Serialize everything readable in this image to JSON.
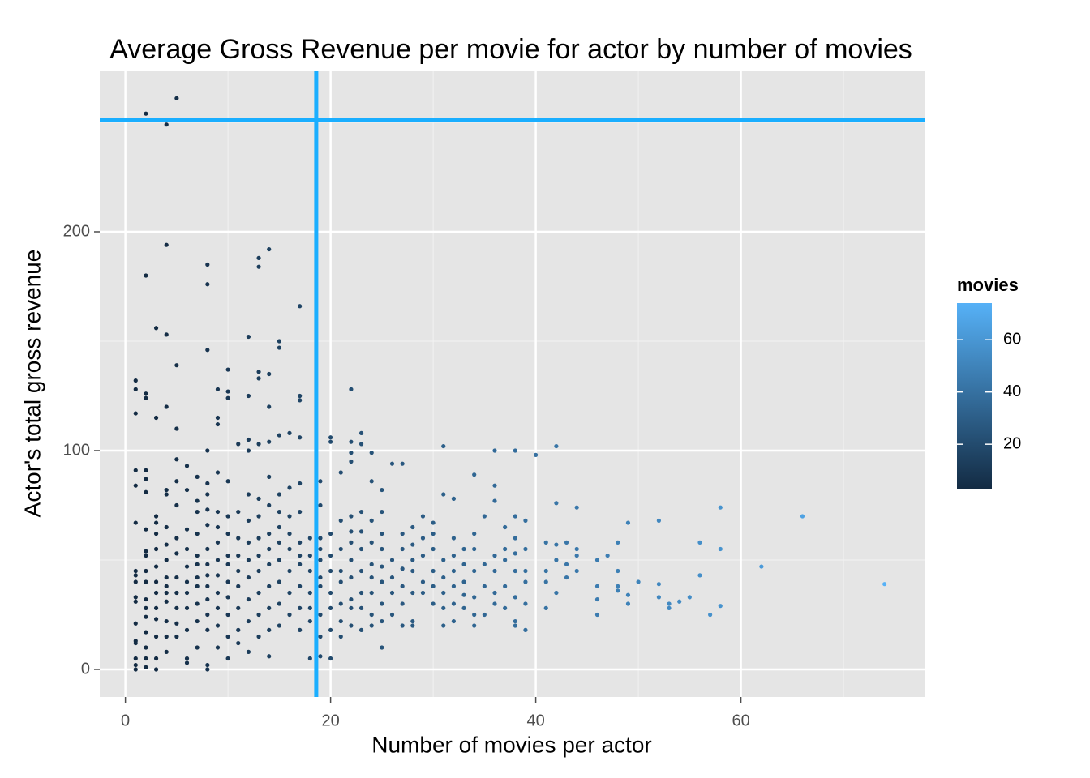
{
  "chart_data": {
    "type": "scatter",
    "title": "Average Gross Revenue per movie for actor by number of movies",
    "x_label": "Number of movies per actor",
    "y_label": "Actor's total gross revenue",
    "xlim": [
      -2.5,
      77.9
    ],
    "ylim": [
      -12.6,
      273.7
    ],
    "xticks": [
      0,
      20,
      40,
      60
    ],
    "yticks": [
      0,
      100,
      200
    ],
    "x_minor_grid": [
      10,
      30,
      50,
      70
    ],
    "y_minor_grid": [
      50,
      150,
      250
    ],
    "grid": true,
    "legend_title": "movies",
    "legend_position": "right",
    "color_scale": {
      "low": "#132B43",
      "high": "#56B1F7",
      "lim": [
        3,
        74
      ],
      "ticks": [
        20,
        40,
        60
      ]
    },
    "reference_lines": {
      "color": "#1aaeff",
      "x": 18.6,
      "y": 251
    },
    "x": [
      1,
      1,
      1,
      1,
      1,
      1,
      1,
      1,
      1,
      1,
      1,
      1,
      1,
      1,
      1,
      1,
      1,
      2,
      2,
      2,
      2,
      2,
      2,
      2,
      2,
      2,
      2,
      2,
      2,
      2,
      2,
      2,
      2,
      2,
      2,
      2,
      3,
      3,
      3,
      3,
      3,
      3,
      3,
      3,
      3,
      3,
      3,
      3,
      3,
      3,
      4,
      4,
      4,
      4,
      4,
      4,
      4,
      4,
      4,
      4,
      4,
      4,
      4,
      4,
      4,
      4,
      5,
      5,
      5,
      5,
      5,
      5,
      5,
      5,
      5,
      5,
      5,
      5,
      5,
      6,
      6,
      6,
      6,
      6,
      6,
      6,
      6,
      6,
      6,
      6,
      7,
      7,
      7,
      7,
      7,
      7,
      7,
      7,
      7,
      7,
      7,
      8,
      8,
      8,
      8,
      8,
      8,
      8,
      8,
      8,
      8,
      8,
      8,
      8,
      8,
      8,
      8,
      8,
      9,
      9,
      9,
      9,
      9,
      9,
      9,
      9,
      9,
      9,
      9,
      9,
      9,
      10,
      10,
      10,
      10,
      10,
      10,
      10,
      10,
      10,
      10,
      10,
      10,
      10,
      11,
      11,
      11,
      11,
      11,
      11,
      11,
      11,
      11,
      12,
      12,
      12,
      12,
      12,
      12,
      12,
      12,
      12,
      12,
      12,
      12,
      13,
      13,
      13,
      13,
      13,
      13,
      13,
      13,
      13,
      13,
      13,
      13,
      13,
      14,
      14,
      14,
      14,
      14,
      14,
      14,
      14,
      14,
      14,
      14,
      14,
      14,
      15,
      15,
      15,
      15,
      15,
      15,
      15,
      15,
      15,
      15,
      15,
      16,
      16,
      16,
      16,
      16,
      16,
      16,
      16,
      17,
      17,
      17,
      17,
      17,
      17,
      17,
      17,
      17,
      17,
      17,
      17,
      18,
      18,
      18,
      18,
      18,
      18,
      18,
      19,
      19,
      19,
      19,
      19,
      19,
      19,
      19,
      19,
      19,
      20,
      20,
      20,
      20,
      20,
      20,
      20,
      20,
      20,
      21,
      21,
      21,
      21,
      21,
      21,
      21,
      21,
      22,
      22,
      22,
      22,
      22,
      22,
      22,
      22,
      22,
      22,
      22,
      22,
      23,
      23,
      23,
      23,
      23,
      23,
      23,
      23,
      23,
      24,
      24,
      24,
      24,
      24,
      24,
      24,
      24,
      24,
      25,
      25,
      25,
      25,
      25,
      25,
      25,
      25,
      25,
      26,
      26,
      26,
      26,
      26,
      27,
      27,
      27,
      27,
      27,
      27,
      27,
      28,
      28,
      28,
      28,
      28,
      28,
      28,
      29,
      29,
      29,
      29,
      29,
      30,
      30,
      30,
      30,
      30,
      30,
      31,
      31,
      31,
      31,
      31,
      31,
      31,
      32,
      32,
      32,
      32,
      32,
      32,
      32,
      33,
      33,
      33,
      33,
      33,
      34,
      34,
      34,
      34,
      34,
      34,
      34,
      35,
      35,
      35,
      35,
      36,
      36,
      36,
      36,
      36,
      36,
      36,
      37,
      37,
      37,
      37,
      37,
      38,
      38,
      38,
      38,
      38,
      38,
      38,
      38,
      39,
      39,
      39,
      39,
      39,
      39,
      40,
      41,
      41,
      41,
      41,
      42,
      42,
      42,
      42,
      42,
      43,
      43,
      43,
      44,
      44,
      44,
      44,
      46,
      46,
      46,
      46,
      47,
      48,
      48,
      48,
      48,
      49,
      49,
      49,
      50,
      52,
      52,
      52,
      53,
      53,
      54,
      55,
      56,
      56,
      57,
      58,
      58,
      58,
      62,
      66,
      74
    ],
    "y": [
      0,
      2,
      5,
      12,
      13,
      21,
      31,
      33,
      40,
      43,
      45,
      67,
      84,
      91,
      117,
      128,
      132,
      1,
      5,
      10,
      17,
      24,
      28,
      32,
      40,
      45,
      52,
      54,
      64,
      81,
      87,
      91,
      124,
      126,
      180,
      254,
      0,
      5,
      15,
      23,
      28,
      35,
      40,
      47,
      55,
      62,
      67,
      70,
      115,
      156,
      8,
      15,
      22,
      31,
      35,
      38,
      42,
      50,
      57,
      65,
      80,
      82,
      120,
      153,
      194,
      249,
      15,
      21,
      28,
      35,
      42,
      53,
      60,
      75,
      86,
      96,
      110,
      139,
      261,
      3,
      5,
      18,
      28,
      35,
      40,
      47,
      55,
      64,
      82,
      93,
      10,
      22,
      30,
      38,
      42,
      48,
      52,
      62,
      72,
      77,
      88,
      0,
      2,
      18,
      25,
      32,
      38,
      43,
      48,
      55,
      66,
      73,
      80,
      85,
      100,
      146,
      176,
      185,
      10,
      20,
      28,
      35,
      43,
      50,
      58,
      65,
      72,
      90,
      112,
      115,
      128,
      5,
      15,
      25,
      33,
      40,
      48,
      52,
      62,
      70,
      86,
      124,
      127,
      137,
      12,
      18,
      28,
      38,
      45,
      52,
      60,
      72,
      103,
      8,
      22,
      32,
      42,
      50,
      58,
      68,
      80,
      100,
      105,
      125,
      152,
      15,
      25,
      35,
      45,
      52,
      60,
      70,
      78,
      103,
      133,
      136,
      184,
      188,
      6,
      18,
      28,
      38,
      48,
      55,
      62,
      75,
      88,
      104,
      120,
      135,
      192,
      20,
      30,
      40,
      50,
      58,
      65,
      72,
      80,
      107,
      147,
      150,
      25,
      35,
      45,
      55,
      62,
      70,
      83,
      108,
      18,
      28,
      38,
      48,
      52,
      58,
      72,
      85,
      106,
      123,
      125,
      166,
      5,
      22,
      28,
      35,
      45,
      52,
      60,
      6,
      15,
      25,
      38,
      42,
      50,
      55,
      60,
      75,
      86,
      5,
      18,
      28,
      35,
      45,
      52,
      62,
      104,
      106,
      15,
      22,
      30,
      40,
      45,
      55,
      68,
      90,
      20,
      28,
      32,
      42,
      50,
      58,
      63,
      70,
      95,
      99,
      104,
      128,
      18,
      28,
      35,
      45,
      55,
      63,
      72,
      103,
      108,
      20,
      25,
      35,
      42,
      48,
      58,
      68,
      86,
      99,
      10,
      22,
      30,
      40,
      47,
      55,
      62,
      72,
      82,
      25,
      35,
      42,
      50,
      94,
      20,
      30,
      38,
      46,
      55,
      62,
      94,
      20,
      22,
      35,
      45,
      50,
      57,
      65,
      35,
      40,
      52,
      60,
      70,
      30,
      38,
      45,
      55,
      62,
      67,
      20,
      28,
      35,
      42,
      50,
      80,
      102,
      22,
      30,
      38,
      45,
      52,
      60,
      78,
      28,
      34,
      40,
      48,
      55,
      20,
      25,
      33,
      45,
      55,
      62,
      89,
      25,
      38,
      48,
      70,
      30,
      35,
      45,
      52,
      77,
      84,
      100,
      28,
      38,
      50,
      55,
      65,
      20,
      22,
      33,
      45,
      53,
      60,
      70,
      100,
      18,
      30,
      40,
      45,
      55,
      68,
      98,
      28,
      40,
      45,
      58,
      35,
      50,
      57,
      76,
      102,
      42,
      48,
      58,
      45,
      52,
      55,
      74,
      25,
      32,
      38,
      50,
      52,
      36,
      38,
      45,
      58,
      30,
      34,
      67,
      40,
      33,
      39,
      68,
      28,
      30,
      31,
      33,
      43,
      58,
      25,
      29,
      55,
      74,
      47,
      70,
      39
    ]
  }
}
